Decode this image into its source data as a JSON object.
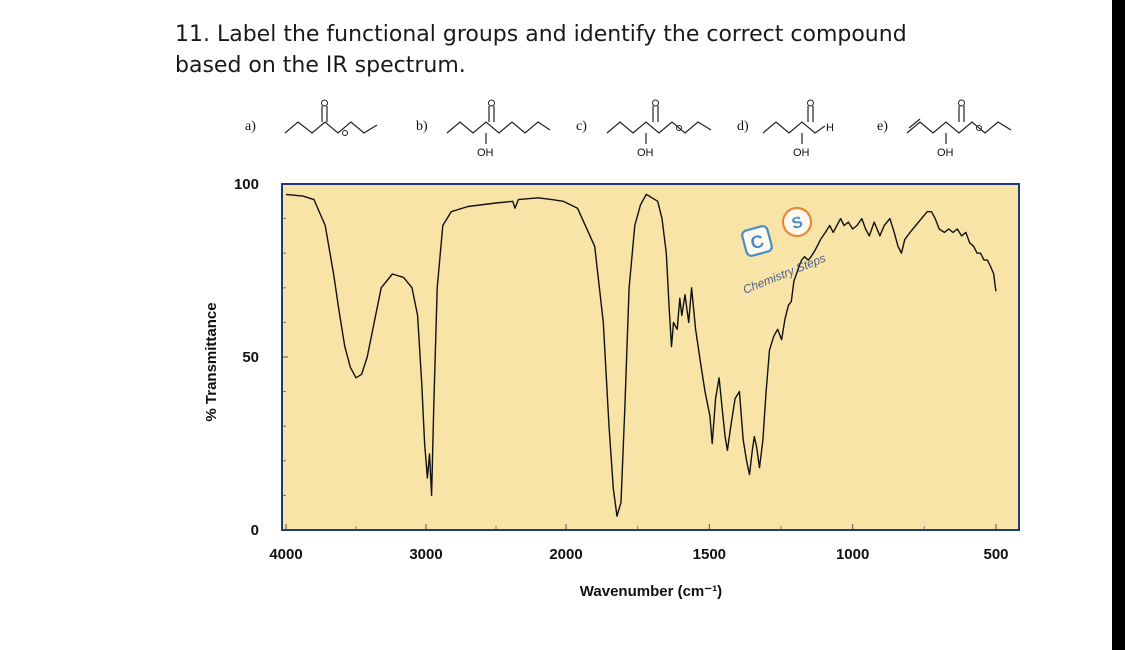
{
  "question": {
    "text": "11. Label the functional groups and identify the correct compound based on the IR spectrum."
  },
  "options": [
    {
      "label": "a)"
    },
    {
      "label": "b)",
      "atom": "OH"
    },
    {
      "label": "c)",
      "atom": "OH"
    },
    {
      "label": "d)",
      "atom": "OH",
      "aldehyde_atom": "H"
    },
    {
      "label": "e)",
      "atom": "OH"
    }
  ],
  "watermark": {
    "text": "Chemistry Steps",
    "letters": [
      "C",
      "S"
    ]
  },
  "chart_data": {
    "type": "line",
    "xlabel": "Wavenumber (cm⁻¹)",
    "ylabel": "% Transmittance",
    "x_ticks": [
      4000,
      3000,
      2000,
      1500,
      1000,
      500
    ],
    "x_tick_labels": [
      "4000",
      "3000",
      "2000",
      "1500",
      "1000",
      "500"
    ],
    "y_ticks": [
      0,
      50,
      100
    ],
    "y_tick_labels": [
      "0",
      "50",
      "100"
    ],
    "ylim": [
      0,
      100
    ],
    "x_scale": "piecewise linear (4000-2000 compressed, 2000-500 expanded), decreasing left to right",
    "plot_background": "#f9e4a8",
    "frame_color": "#1f3a7a",
    "series": [
      {
        "color": "#111111",
        "points": [
          [
            4000,
            97
          ],
          [
            3880,
            96.5
          ],
          [
            3800,
            95.5
          ],
          [
            3720,
            88
          ],
          [
            3660,
            74
          ],
          [
            3620,
            63
          ],
          [
            3580,
            53
          ],
          [
            3540,
            47
          ],
          [
            3500,
            44
          ],
          [
            3460,
            45
          ],
          [
            3420,
            50
          ],
          [
            3380,
            58
          ],
          [
            3320,
            70
          ],
          [
            3240,
            74
          ],
          [
            3160,
            73
          ],
          [
            3100,
            70
          ],
          [
            3060,
            62
          ],
          [
            3030,
            42
          ],
          [
            3010,
            25
          ],
          [
            2990,
            15
          ],
          [
            2975,
            22
          ],
          [
            2960,
            10
          ],
          [
            2945,
            35
          ],
          [
            2920,
            70
          ],
          [
            2880,
            88
          ],
          [
            2820,
            92
          ],
          [
            2700,
            93.5
          ],
          [
            2500,
            94.5
          ],
          [
            2380,
            95
          ],
          [
            2365,
            93
          ],
          [
            2340,
            95.5
          ],
          [
            2200,
            96
          ],
          [
            2100,
            95.5
          ],
          [
            2020,
            95
          ],
          [
            1960,
            93
          ],
          [
            1900,
            82
          ],
          [
            1870,
            60
          ],
          [
            1850,
            30
          ],
          [
            1835,
            12
          ],
          [
            1822,
            4
          ],
          [
            1808,
            8
          ],
          [
            1795,
            35
          ],
          [
            1780,
            70
          ],
          [
            1760,
            88
          ],
          [
            1740,
            94
          ],
          [
            1720,
            97
          ],
          [
            1700,
            96
          ],
          [
            1680,
            95
          ],
          [
            1665,
            90
          ],
          [
            1650,
            80
          ],
          [
            1640,
            64
          ],
          [
            1632,
            53
          ],
          [
            1625,
            60
          ],
          [
            1612,
            58
          ],
          [
            1603,
            67
          ],
          [
            1596,
            62
          ],
          [
            1585,
            68
          ],
          [
            1572,
            60
          ],
          [
            1562,
            70
          ],
          [
            1548,
            58
          ],
          [
            1530,
            48
          ],
          [
            1515,
            40
          ],
          [
            1498,
            33
          ],
          [
            1490,
            25
          ],
          [
            1478,
            38
          ],
          [
            1466,
            44
          ],
          [
            1455,
            35
          ],
          [
            1445,
            27
          ],
          [
            1437,
            23
          ],
          [
            1425,
            30
          ],
          [
            1410,
            38
          ],
          [
            1395,
            40
          ],
          [
            1382,
            26
          ],
          [
            1370,
            20
          ],
          [
            1360,
            16
          ],
          [
            1350,
            23
          ],
          [
            1343,
            27
          ],
          [
            1335,
            24
          ],
          [
            1325,
            18
          ],
          [
            1313,
            26
          ],
          [
            1302,
            40
          ],
          [
            1290,
            52
          ],
          [
            1275,
            56
          ],
          [
            1262,
            58
          ],
          [
            1248,
            55
          ],
          [
            1236,
            61
          ],
          [
            1224,
            65
          ],
          [
            1214,
            66
          ],
          [
            1205,
            72
          ],
          [
            1196,
            74
          ],
          [
            1188,
            76
          ],
          [
            1178,
            78
          ],
          [
            1168,
            79
          ],
          [
            1155,
            78
          ],
          [
            1145,
            79
          ],
          [
            1130,
            81
          ],
          [
            1112,
            84
          ],
          [
            1095,
            86
          ],
          [
            1080,
            88
          ],
          [
            1068,
            86
          ],
          [
            1055,
            88
          ],
          [
            1042,
            90
          ],
          [
            1030,
            88
          ],
          [
            1015,
            89
          ],
          [
            1000,
            87
          ],
          [
            985,
            88
          ],
          [
            968,
            90
          ],
          [
            955,
            87
          ],
          [
            942,
            85
          ],
          [
            925,
            89
          ],
          [
            905,
            85
          ],
          [
            890,
            88
          ],
          [
            870,
            90
          ],
          [
            855,
            86
          ],
          [
            842,
            82
          ],
          [
            830,
            80
          ],
          [
            818,
            84
          ],
          [
            800,
            86
          ],
          [
            780,
            88
          ],
          [
            760,
            90
          ],
          [
            740,
            92
          ],
          [
            725,
            92
          ],
          [
            712,
            90
          ],
          [
            698,
            87
          ],
          [
            680,
            86
          ],
          [
            665,
            87
          ],
          [
            650,
            86
          ],
          [
            635,
            87
          ],
          [
            620,
            85
          ],
          [
            605,
            86
          ],
          [
            592,
            83
          ],
          [
            578,
            82
          ],
          [
            566,
            80
          ],
          [
            554,
            80
          ],
          [
            542,
            78
          ],
          [
            530,
            78
          ],
          [
            518,
            76
          ],
          [
            508,
            74
          ],
          [
            502,
            70
          ],
          [
            500,
            69
          ]
        ]
      }
    ]
  }
}
